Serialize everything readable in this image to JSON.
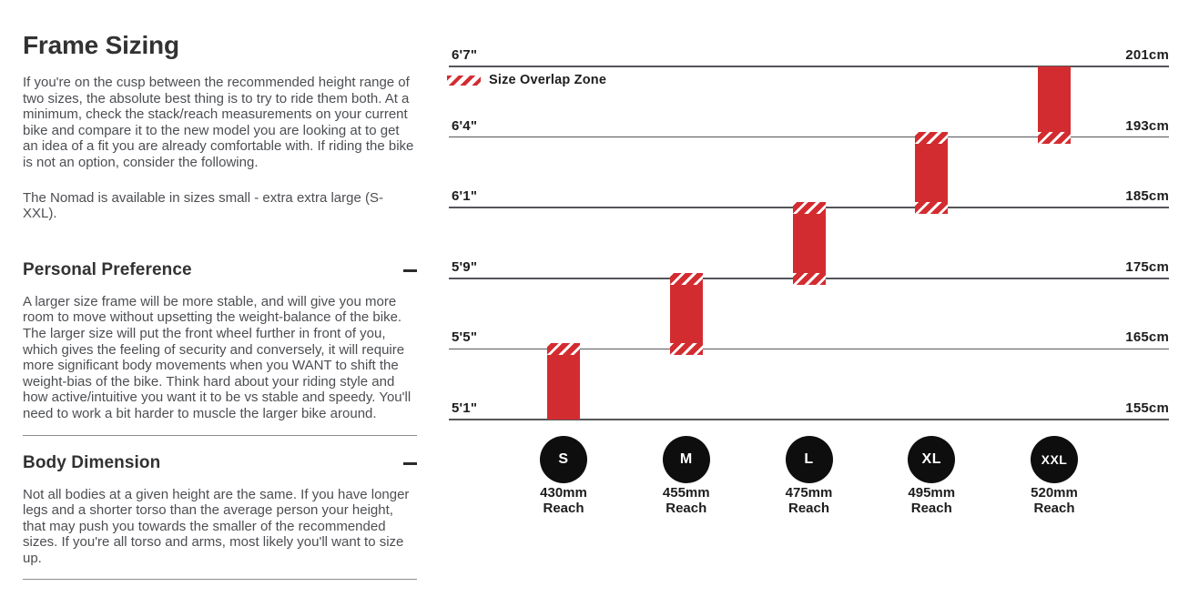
{
  "page": {
    "title": "Frame Sizing",
    "intro": "If you're on the cusp between the recommended height range of two sizes, the absolute best thing is to try to ride them both. At a minimum, check the stack/reach measurements on your current bike and compare it to the new model you are looking at to get an idea of a fit you are already comfortable with. If riding the bike is not an option, consider the following.",
    "availability": "The Nomad is available in sizes small - extra extra large (S-XXL).",
    "sections": [
      {
        "heading": "Personal Preference",
        "state_icon": "minus-icon",
        "body": "A larger size frame will be more stable, and will give you more room to move without upsetting the weight-balance of the bike. The larger size will put the front wheel further in front of you, which gives the feeling of security and conversely, it will require more significant body movements when you WANT to shift the weight-bias of the bike. Think hard about your riding style and how active/intuitive you want it to be vs stable and speedy. You'll need to work a bit harder to muscle the larger bike around."
      },
      {
        "heading": "Body Dimension",
        "state_icon": "minus-icon",
        "body": "Not all bodies at a given height are the same. If you have longer legs and a shorter torso than the average person your height, that may push you towards the smaller of the recommended sizes. If you're all torso and arms, most likely you'll want to size up."
      }
    ]
  },
  "chart_data": {
    "type": "bar",
    "title": "",
    "legend": {
      "label": "Size Overlap Zone",
      "swatch": "red-diagonal-hatch",
      "position": "top-left"
    },
    "grid": "horizontal-lines-only",
    "ylim_cm": [
      155,
      201
    ],
    "line_spacing": "even",
    "height_lines": [
      {
        "ft": "6'7\"",
        "cm": "201cm",
        "value_cm": 201
      },
      {
        "ft": "6'4\"",
        "cm": "193cm",
        "value_cm": 193
      },
      {
        "ft": "6'1\"",
        "cm": "185cm",
        "value_cm": 185
      },
      {
        "ft": "5'9\"",
        "cm": "175cm",
        "value_cm": 175
      },
      {
        "ft": "5'5\"",
        "cm": "165cm",
        "value_cm": 165
      },
      {
        "ft": "5'1\"",
        "cm": "155cm",
        "value_cm": 155
      }
    ],
    "sizes": [
      {
        "label": "S",
        "reach_mm": 430,
        "reach_label": "430mm",
        "reach_sublabel": "Reach",
        "height_range_cm": [
          155,
          165
        ],
        "overlap_top": true,
        "overlap_bottom": false
      },
      {
        "label": "M",
        "reach_mm": 455,
        "reach_label": "455mm",
        "reach_sublabel": "Reach",
        "height_range_cm": [
          165,
          175
        ],
        "overlap_top": true,
        "overlap_bottom": true
      },
      {
        "label": "L",
        "reach_mm": 475,
        "reach_label": "475mm",
        "reach_sublabel": "Reach",
        "height_range_cm": [
          175,
          185
        ],
        "overlap_top": true,
        "overlap_bottom": true
      },
      {
        "label": "XL",
        "reach_mm": 495,
        "reach_label": "495mm",
        "reach_sublabel": "Reach",
        "height_range_cm": [
          185,
          193
        ],
        "overlap_top": true,
        "overlap_bottom": true
      },
      {
        "label": "XXL",
        "reach_mm": 520,
        "reach_label": "520mm",
        "reach_sublabel": "Reach",
        "height_range_cm": [
          193,
          201
        ],
        "overlap_top": false,
        "overlap_bottom": true
      }
    ],
    "colors": {
      "bar": "#d32c30",
      "gridline": "#55565a",
      "axis_label": "#1d1d1f",
      "circle": "#0e0e0e",
      "circle_text": "#ffffff"
    }
  }
}
